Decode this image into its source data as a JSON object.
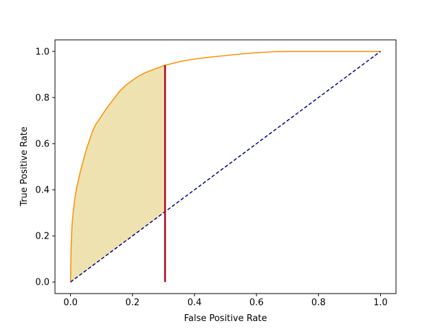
{
  "chart_data": {
    "type": "line",
    "title": "",
    "xlabel": "False Positive Rate",
    "ylabel": "True Positive Rate",
    "xlim": [
      -0.05,
      1.05
    ],
    "ylim": [
      -0.05,
      1.05
    ],
    "xticks": [
      "0.0",
      "0.2",
      "0.4",
      "0.6",
      "0.8",
      "1.0"
    ],
    "yticks": [
      "0.0",
      "0.2",
      "0.4",
      "0.6",
      "0.8",
      "1.0"
    ],
    "grid": false,
    "legend": "none",
    "series": [
      {
        "style": "solid",
        "color": "#ff8c00",
        "x": [
          0.0,
          0.002,
          0.005,
          0.01,
          0.015,
          0.02,
          0.03,
          0.04,
          0.05,
          0.06,
          0.07,
          0.08,
          0.1,
          0.12,
          0.14,
          0.16,
          0.18,
          0.2,
          0.22,
          0.24,
          0.26,
          0.28,
          0.305,
          0.33,
          0.36,
          0.4,
          0.45,
          0.5,
          0.55,
          0.6,
          0.66,
          0.7,
          0.8,
          0.9,
          1.0
        ],
        "y": [
          0.0,
          0.15,
          0.25,
          0.32,
          0.37,
          0.41,
          0.47,
          0.52,
          0.57,
          0.61,
          0.65,
          0.68,
          0.72,
          0.76,
          0.795,
          0.83,
          0.855,
          0.875,
          0.893,
          0.907,
          0.918,
          0.928,
          0.94,
          0.948,
          0.958,
          0.967,
          0.975,
          0.982,
          0.989,
          0.994,
          0.999,
          1.0,
          1.0,
          1.0,
          1.0
        ]
      },
      {
        "style": "dashed",
        "color": "#000080",
        "x": [
          0.0,
          1.0
        ],
        "y": [
          0.0,
          1.0
        ]
      }
    ],
    "shaded_area": {
      "x_from": 0.0,
      "x_to": 0.305,
      "color": "#eee2b0"
    },
    "vertical_marker": {
      "x": 0.305,
      "y_from": 0.0,
      "y_to": 0.94,
      "color": "#b0001e"
    }
  }
}
